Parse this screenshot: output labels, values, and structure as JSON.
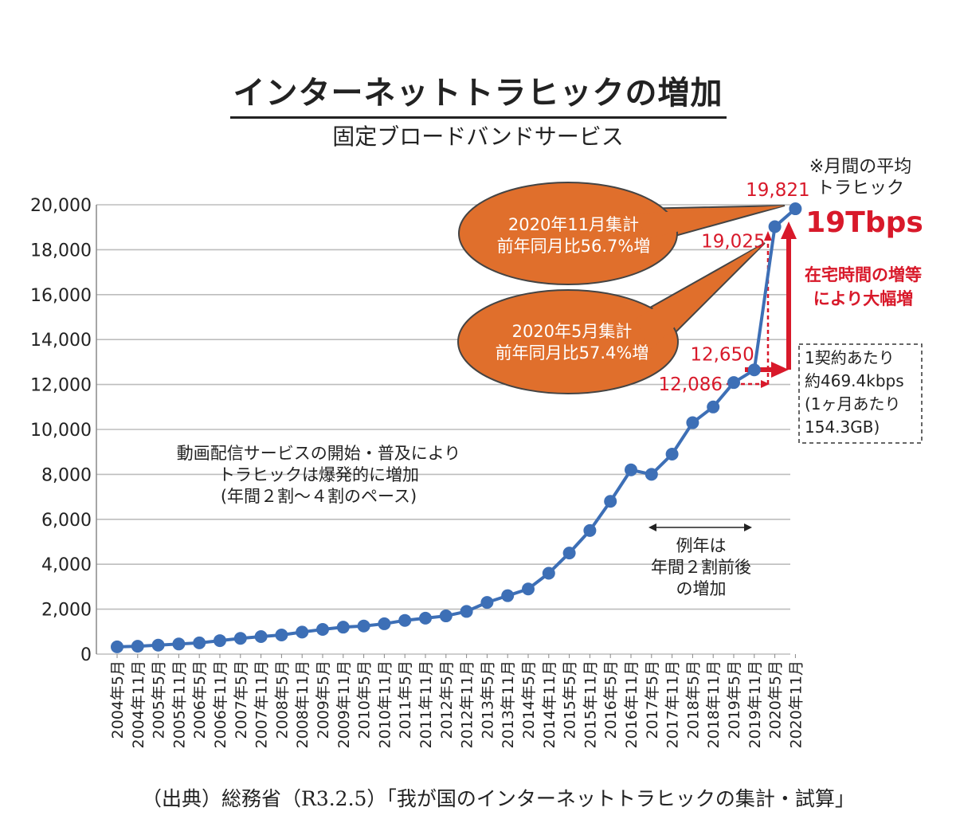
{
  "title": "インターネットトラヒックの増加",
  "subtitle": "固定ブロードバンドサービス",
  "notes": {
    "monthly_avg": [
      "※月間の平均",
      "トラヒック"
    ],
    "tbps": "19Tbps",
    "stay_home": [
      "在宅時間の増等",
      "により大幅増"
    ],
    "per_contract": [
      "1契約あたり",
      "約469.4kbps",
      "(1ヶ月あたり",
      "154.3GB)"
    ],
    "video": [
      "動画配信サービスの開始・普及により",
      "トラヒックは爆発的に増加",
      "(年間２割～４割のペース)"
    ],
    "usual": [
      "例年は",
      "年間２割前後",
      "の増加"
    ]
  },
  "bubbles": {
    "nov2020": [
      "2020年11月集計",
      "前年同月比56.7%増"
    ],
    "may2020": [
      "2020年5月集計",
      "前年同月比57.4%増"
    ]
  },
  "source": "（出典）総務省（R3.2.5）「我が国のインターネットトラヒックの集計・試算」",
  "colors": {
    "line": "#3d6fb6",
    "red": "#d8192a",
    "bubble": "#e06f2c",
    "grid": "#bdbdbd"
  },
  "chart_data": {
    "type": "line",
    "title": "インターネットトラヒックの増加",
    "subtitle": "固定ブロードバンドサービス",
    "xlabel": "",
    "ylabel": "",
    "ylim": [
      0,
      20000
    ],
    "yticks": [
      0,
      2000,
      4000,
      6000,
      8000,
      10000,
      12000,
      14000,
      16000,
      18000,
      20000
    ],
    "ytick_labels": [
      "0",
      "2,000",
      "4,000",
      "6,000",
      "8,000",
      "10,000",
      "12,000",
      "14,000",
      "16,000",
      "18,000",
      "20,000"
    ],
    "grid": true,
    "categories": [
      "2004年5月",
      "2004年11月",
      "2005年5月",
      "2005年11月",
      "2006年5月",
      "2006年11月",
      "2007年5月",
      "2007年11月",
      "2008年5月",
      "2008年11月",
      "2009年5月",
      "2009年11月",
      "2010年5月",
      "2010年11月",
      "2011年5月",
      "2011年11月",
      "2012年5月",
      "2012年11月",
      "2013年5月",
      "2013年11月",
      "2014年5月",
      "2014年11月",
      "2015年5月",
      "2015年11月",
      "2016年5月",
      "2016年11月",
      "2017年5月",
      "2017年11月",
      "2018年5月",
      "2018年11月",
      "2019年5月",
      "2019年11月",
      "2020年5月",
      "2020年11月"
    ],
    "series": [
      {
        "name": "固定ブロードバンドサービス",
        "values": [
          324,
          350,
          400,
          450,
          500,
          600,
          700,
          780,
          850,
          980,
          1100,
          1200,
          1250,
          1350,
          1500,
          1600,
          1700,
          1900,
          2300,
          2600,
          2900,
          3600,
          4500,
          5500,
          6800,
          8200,
          8000,
          8900,
          10300,
          11000,
          12086,
          12650,
          19025,
          19821
        ]
      }
    ],
    "labeled_points": [
      {
        "category": "2019年5月",
        "value": 12086,
        "label": "12,086"
      },
      {
        "category": "2019年11月",
        "value": 12650,
        "label": "12,650"
      },
      {
        "category": "2020年5月",
        "value": 19025,
        "label": "19,025"
      },
      {
        "category": "2020年11月",
        "value": 19821,
        "label": "19,821"
      }
    ]
  }
}
